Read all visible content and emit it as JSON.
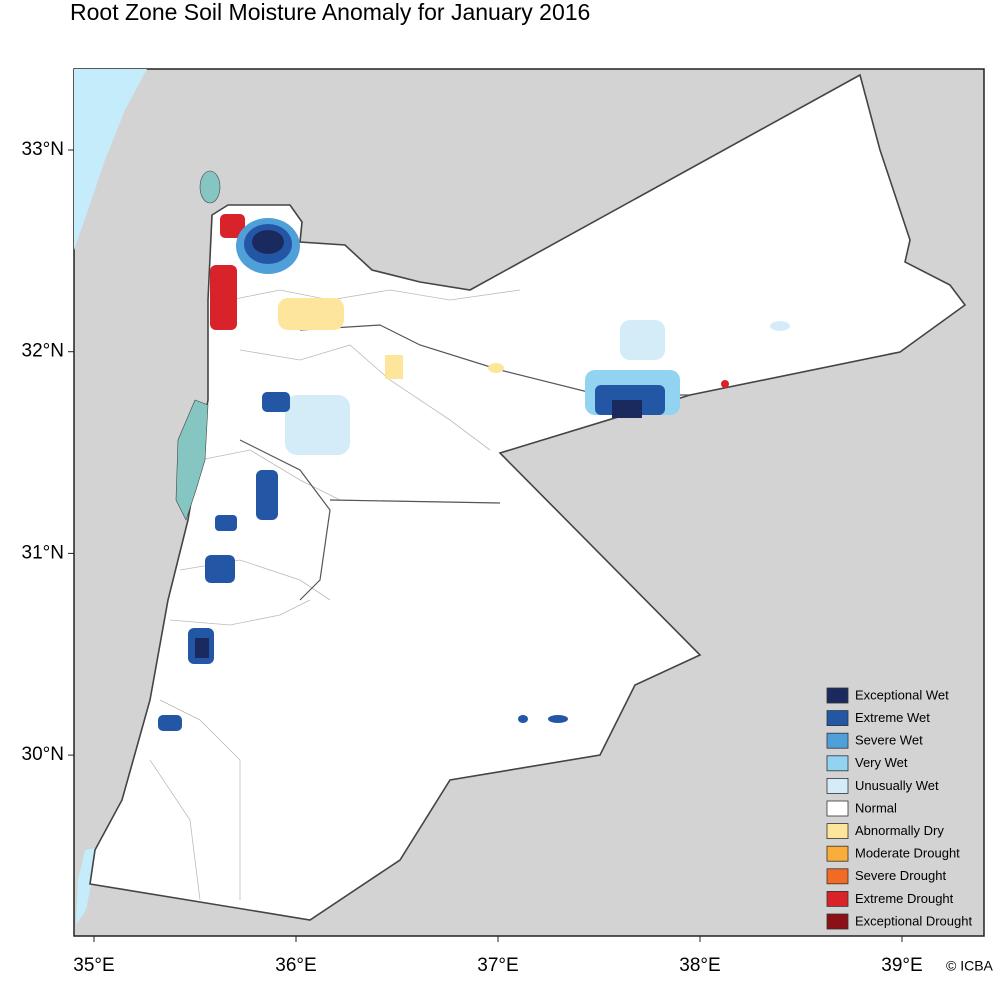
{
  "title": "Root Zone Soil Moisture Anomaly for January 2016",
  "lon_ticks": [
    {
      "value": 35,
      "label": "35°E"
    },
    {
      "value": 36,
      "label": "36°E"
    },
    {
      "value": 37,
      "label": "37°E"
    },
    {
      "value": 38,
      "label": "38°E"
    },
    {
      "value": 39,
      "label": "39°E"
    }
  ],
  "lat_ticks": [
    {
      "value": 33,
      "label": "33°N"
    },
    {
      "value": 32,
      "label": "32°N"
    },
    {
      "value": 31,
      "label": "31°N"
    },
    {
      "value": 30,
      "label": "30°N"
    }
  ],
  "legend": [
    {
      "label": "Exceptional Wet",
      "color": "#1b2a5e"
    },
    {
      "label": "Extreme Wet",
      "color": "#2456a6"
    },
    {
      "label": "Severe Wet",
      "color": "#4f9fd8"
    },
    {
      "label": "Very Wet",
      "color": "#92d3f2"
    },
    {
      "label": "Unusually Wet",
      "color": "#d4ecf8"
    },
    {
      "label": "Normal",
      "color": "#ffffff"
    },
    {
      "label": "Abnormally Dry",
      "color": "#fde59b"
    },
    {
      "label": "Moderate Drought",
      "color": "#f9ae3a"
    },
    {
      "label": "Severe Drought",
      "color": "#f26b25"
    },
    {
      "label": "Extreme Drought",
      "color": "#d8232a"
    },
    {
      "label": "Exceptional Drought",
      "color": "#8b1116"
    }
  ],
  "credit": "© ICBA"
}
